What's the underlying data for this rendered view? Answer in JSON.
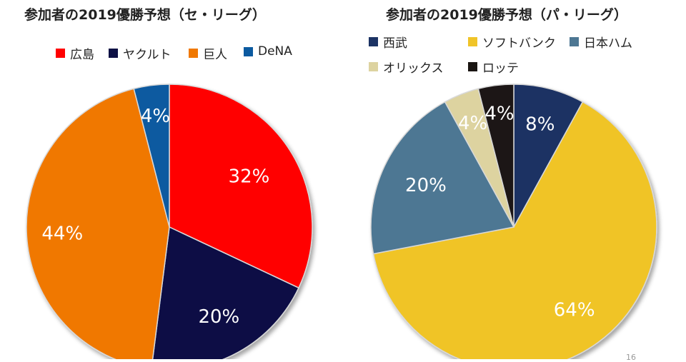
{
  "chart_data": [
    {
      "type": "pie",
      "title": "参加者の2019優勝予想（セ・リーグ）",
      "categories": [
        "広島",
        "ヤクルト",
        "巨人",
        "DeNA"
      ],
      "values": [
        32,
        20,
        44,
        4
      ],
      "value_labels": [
        "32%",
        "20%",
        "44%",
        "4%"
      ],
      "colors": [
        "#ff0000",
        "#0d1044",
        "#f07800",
        "#0b5aa0"
      ],
      "legend_position": "top",
      "start_angle_deg": 0,
      "direction": "clockwise"
    },
    {
      "type": "pie",
      "title": "参加者の2019優勝予想（パ・リーグ）",
      "categories": [
        "西武",
        "ソフトバンク",
        "日本ハム",
        "オリックス",
        "ロッテ"
      ],
      "values": [
        8,
        64,
        20,
        4,
        4
      ],
      "value_labels": [
        "8%",
        "64%",
        "20%",
        "4%",
        "4%"
      ],
      "colors": [
        "#1c3364",
        "#f0c428",
        "#4d7793",
        "#ddd3a0",
        "#1a1512"
      ],
      "legend_position": "top",
      "start_angle_deg": 0,
      "direction": "clockwise"
    }
  ],
  "page_number": "16"
}
